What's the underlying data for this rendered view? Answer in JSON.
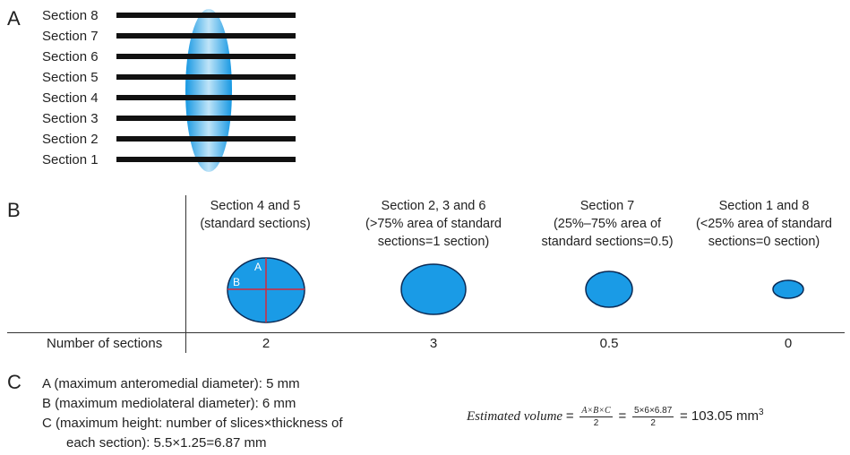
{
  "panels": {
    "a": "A",
    "b": "B",
    "c": "C"
  },
  "panel_a": {
    "sections": [
      "Section 8",
      "Section 7",
      "Section 6",
      "Section 5",
      "Section 4",
      "Section 3",
      "Section 2",
      "Section 1"
    ]
  },
  "panel_b": {
    "columns": [
      {
        "line1": "Section 4 and 5",
        "line2": "(standard sections)",
        "line3": "",
        "count": "2",
        "axis_a": "A",
        "axis_b": "B"
      },
      {
        "line1": "Section 2, 3 and 6",
        "line2": "(>75% area of standard",
        "line3": "sections=1 section)",
        "count": "3"
      },
      {
        "line1": "Section 7",
        "line2": "(25%–75% area of",
        "line3": "standard sections=0.5)",
        "count": "0.5"
      },
      {
        "line1": "Section 1 and 8",
        "line2": "(<25% area of standard",
        "line3": "sections=0 section)",
        "count": "0"
      }
    ],
    "row_label": "Number of sections"
  },
  "panel_c": {
    "lines": [
      "A (maximum anteromedial diameter): 5 mm",
      "B (maximum mediolateral diameter): 6 mm",
      "C (maximum height: number of slices×thickness of",
      "each section): 5.5×1.25=6.87 mm"
    ],
    "formula": {
      "label": "Estimated volume",
      "eq": "=",
      "frac1_num": "A×B×C",
      "frac1_den": "2",
      "frac2_num": "5×6×6.87",
      "frac2_den": "2",
      "result": "= 103.05 mm",
      "exp": "3"
    }
  },
  "colors": {
    "ellipse": "#1a9be6",
    "bar": "#111111",
    "axis": "#d6283a",
    "rule": "#333333"
  }
}
